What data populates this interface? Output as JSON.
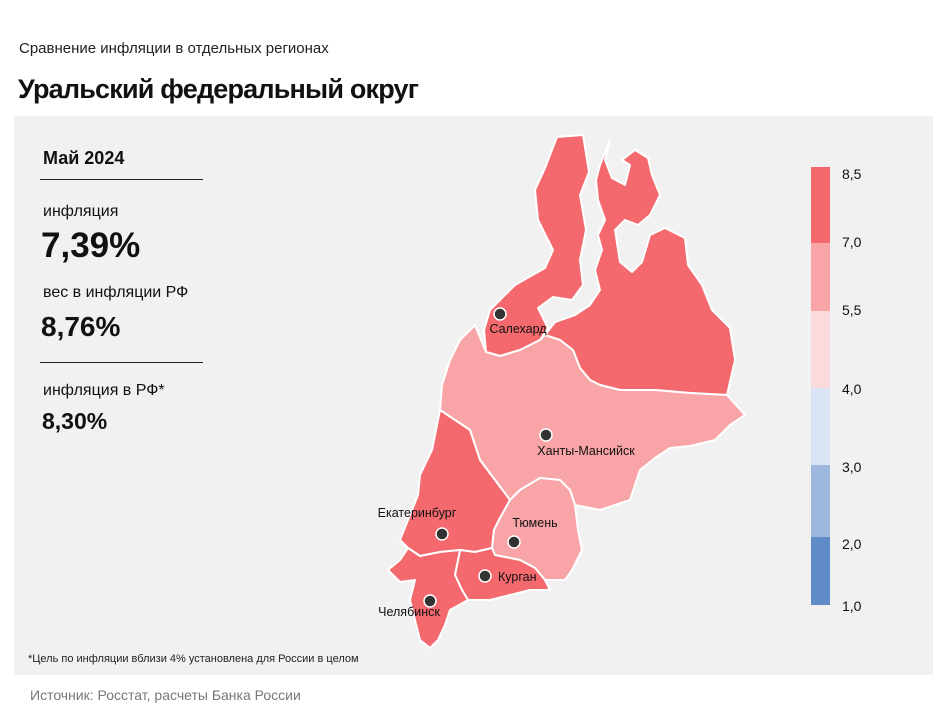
{
  "header": {
    "subtitle": "Сравнение  инфляции  в отдельных  регионах",
    "title": "Уральский федеральный округ"
  },
  "stats": {
    "period": "Май 2024",
    "inflation_label": "инфляция",
    "inflation_value": "7,39%",
    "weight_label": "вес в инфляции  РФ",
    "weight_value": "8,76%",
    "rf_label": "инфляция  в РФ*",
    "rf_value": "8,30%"
  },
  "footnote": "*Цель по инфляции вблизи 4% установлена для России в целом",
  "source": "Источник: Росстат, расчеты Банка России",
  "legend": {
    "values": [
      "8,5",
      "7,0",
      "5,5",
      "4,0",
      "3,0",
      "2,0",
      "1,0"
    ],
    "colors": [
      "#f4696d",
      "#f9a5a8",
      "#fadadc",
      "#dbe4f4",
      "#9db8dc",
      "#5f8cc7"
    ]
  },
  "map": {
    "regions": [
      {
        "name": "Ямало-Ненецкий АО",
        "color": "#f4696d"
      },
      {
        "name": "Ханты-Мансийский АО",
        "color": "#f9a5a8"
      },
      {
        "name": "Свердловская область",
        "color": "#f4696d"
      },
      {
        "name": "Тюменская область",
        "color": "#f9a5a8"
      },
      {
        "name": "Курганская область",
        "color": "#f4696d"
      },
      {
        "name": "Челябинская область",
        "color": "#f4696d"
      }
    ],
    "cities": [
      {
        "name": "Салехард"
      },
      {
        "name": "Ханты-Мансийск"
      },
      {
        "name": "Екатеринбург"
      },
      {
        "name": "Тюмень"
      },
      {
        "name": "Курган"
      },
      {
        "name": "Челябинск"
      }
    ]
  }
}
